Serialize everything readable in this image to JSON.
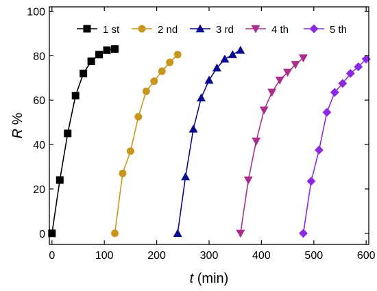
{
  "chart_data": {
    "type": "line",
    "xlabel_var": "t",
    "xlabel_unit": " (min)",
    "ylabel_var": "R",
    "ylabel_unit": " %",
    "xlim": [
      -5,
      605
    ],
    "ylim": [
      -5,
      102
    ],
    "xticks": [
      0,
      100,
      200,
      300,
      400,
      500,
      600
    ],
    "yticks": [
      0,
      20,
      40,
      60,
      80,
      100
    ],
    "grid": false,
    "legend_placement": "top",
    "series": [
      {
        "name": "1 st",
        "color": "#000000",
        "marker": "square",
        "x": [
          0,
          15,
          30,
          45,
          60,
          75,
          90,
          105,
          120
        ],
        "y": [
          0,
          24,
          45,
          62,
          72,
          77.5,
          80.5,
          82.5,
          83
        ]
      },
      {
        "name": "2 nd",
        "color": "#C8961E",
        "marker": "circle",
        "x": [
          120,
          135,
          150,
          165,
          180,
          195,
          210,
          225,
          240
        ],
        "y": [
          0,
          27,
          37,
          52.5,
          64,
          68.5,
          73,
          77,
          80.5
        ]
      },
      {
        "name": "3 rd",
        "color": "#0A0A8C",
        "marker": "triangle-up",
        "x": [
          240,
          255,
          270,
          285,
          300,
          315,
          330,
          345,
          360
        ],
        "y": [
          0,
          25.5,
          47,
          61,
          69,
          74.5,
          78.5,
          80.5,
          82.5
        ]
      },
      {
        "name": "4 th",
        "color": "#AA2E8C",
        "marker": "triangle-down",
        "x": [
          360,
          375,
          390,
          405,
          420,
          435,
          450,
          465,
          480
        ],
        "y": [
          0,
          24,
          41.5,
          55.5,
          63.5,
          69,
          72.5,
          76,
          79
        ]
      },
      {
        "name": "5 th",
        "color": "#8A2BE2",
        "marker": "diamond",
        "x": [
          480,
          495,
          510,
          525,
          540,
          555,
          570,
          585,
          600
        ],
        "y": [
          0,
          23.5,
          37.5,
          54.5,
          63.5,
          67.5,
          72,
          75,
          78.5
        ]
      }
    ]
  }
}
